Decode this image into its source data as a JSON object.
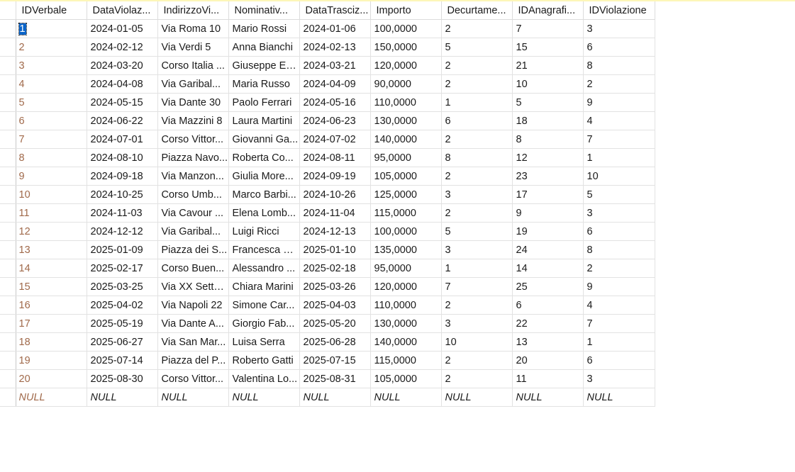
{
  "grid": {
    "columns": [
      "IDVerbale",
      "DataViolaz...",
      "IndirizzoVi...",
      "Nominativ...",
      "DataTrasciz...",
      "Importo",
      "Decurtame...",
      "IDAnagrafi...",
      "IDViolazione"
    ],
    "rows": [
      [
        "1",
        "2024-01-05",
        "Via Roma 10",
        "Mario Rossi",
        "2024-01-06",
        "100,0000",
        "2",
        "7",
        "3"
      ],
      [
        "2",
        "2024-02-12",
        "Via Verdi 5",
        "Anna Bianchi",
        "2024-02-13",
        "150,0000",
        "5",
        "15",
        "6"
      ],
      [
        "3",
        "2024-03-20",
        "Corso Italia ...",
        "Giuseppe Es...",
        "2024-03-21",
        "120,0000",
        "2",
        "21",
        "8"
      ],
      [
        "4",
        "2024-04-08",
        "Via Garibal...",
        "Maria Russo",
        "2024-04-09",
        "90,0000",
        "2",
        "10",
        "2"
      ],
      [
        "5",
        "2024-05-15",
        "Via Dante 30",
        "Paolo Ferrari",
        "2024-05-16",
        "110,0000",
        "1",
        "5",
        "9"
      ],
      [
        "6",
        "2024-06-22",
        "Via Mazzini 8",
        "Laura Martini",
        "2024-06-23",
        "130,0000",
        "6",
        "18",
        "4"
      ],
      [
        "7",
        "2024-07-01",
        "Corso Vittor...",
        "Giovanni Ga...",
        "2024-07-02",
        "140,0000",
        "2",
        "8",
        "7"
      ],
      [
        "8",
        "2024-08-10",
        "Piazza Navo...",
        "Roberta Co...",
        "2024-08-11",
        "95,0000",
        "8",
        "12",
        "1"
      ],
      [
        "9",
        "2024-09-18",
        "Via Manzon...",
        "Giulia More...",
        "2024-09-19",
        "105,0000",
        "2",
        "23",
        "10"
      ],
      [
        "10",
        "2024-10-25",
        "Corso Umb...",
        "Marco Barbi...",
        "2024-10-26",
        "125,0000",
        "3",
        "17",
        "5"
      ],
      [
        "11",
        "2024-11-03",
        "Via Cavour ...",
        "Elena Lomb...",
        "2024-11-04",
        "115,0000",
        "2",
        "9",
        "3"
      ],
      [
        "12",
        "2024-12-12",
        "Via Garibal...",
        "Luigi Ricci",
        "2024-12-13",
        "100,0000",
        "5",
        "19",
        "6"
      ],
      [
        "13",
        "2025-01-09",
        "Piazza dei S...",
        "Francesca G...",
        "2025-01-10",
        "135,0000",
        "3",
        "24",
        "8"
      ],
      [
        "14",
        "2025-02-17",
        "Corso Buen...",
        "Alessandro ...",
        "2025-02-18",
        "95,0000",
        "1",
        "14",
        "2"
      ],
      [
        "15",
        "2025-03-25",
        "Via XX Sette...",
        "Chiara Marini",
        "2025-03-26",
        "120,0000",
        "7",
        "25",
        "9"
      ],
      [
        "16",
        "2025-04-02",
        "Via Napoli 22",
        "Simone Car...",
        "2025-04-03",
        "110,0000",
        "2",
        "6",
        "4"
      ],
      [
        "17",
        "2025-05-19",
        "Via Dante A...",
        "Giorgio Fab...",
        "2025-05-20",
        "130,0000",
        "3",
        "22",
        "7"
      ],
      [
        "18",
        "2025-06-27",
        "Via San Mar...",
        "Luisa Serra",
        "2025-06-28",
        "140,0000",
        "10",
        "13",
        "1"
      ],
      [
        "19",
        "2025-07-14",
        "Piazza del P...",
        "Roberto Gatti",
        "2025-07-15",
        "115,0000",
        "2",
        "20",
        "6"
      ],
      [
        "20",
        "2025-08-30",
        "Corso Vittor...",
        "Valentina Lo...",
        "2025-08-31",
        "105,0000",
        "2",
        "11",
        "3"
      ],
      [
        "NULL",
        "NULL",
        "NULL",
        "NULL",
        "NULL",
        "NULL",
        "NULL",
        "NULL",
        "NULL"
      ]
    ]
  },
  "colors": {
    "id_text": "#a0694a",
    "selection": "#0a64c8",
    "gridline": "#e2e2e2",
    "top_strip": "#fdf6b8"
  }
}
